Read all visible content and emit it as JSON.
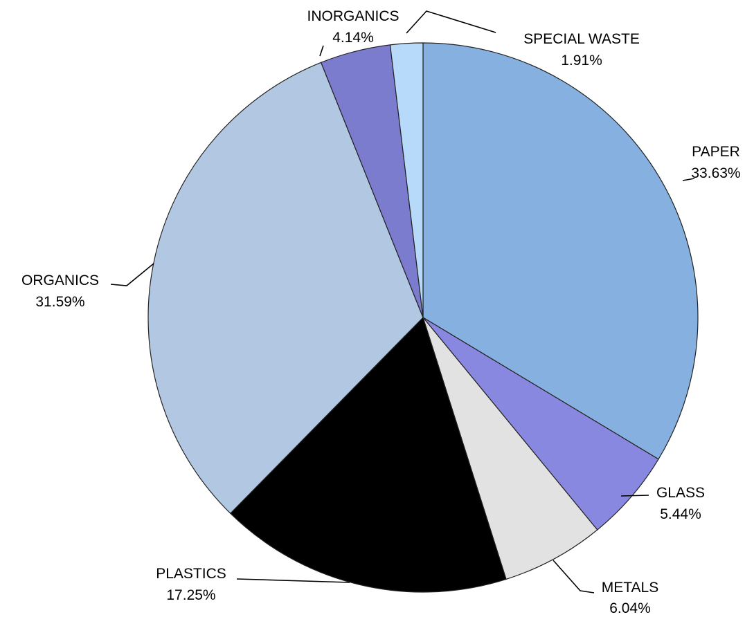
{
  "chart_data": {
    "type": "pie",
    "title": "",
    "slices": [
      {
        "label": "PAPER",
        "value": 33.63,
        "value_label": "33.63%",
        "color": "#86B0E0"
      },
      {
        "label": "GLASS",
        "value": 5.44,
        "value_label": "5.44%",
        "color": "#8888E0"
      },
      {
        "label": "METALS",
        "value": 6.04,
        "value_label": "6.04%",
        "color": "#E2E2E2"
      },
      {
        "label": "PLASTICS",
        "value": 17.25,
        "value_label": "17.25%",
        "color": "#000000"
      },
      {
        "label": "ORGANICS",
        "value": 31.59,
        "value_label": "31.59%",
        "color": "#B2C8E2"
      },
      {
        "label": "INORGANICS",
        "value": 4.14,
        "value_label": "4.14%",
        "color": "#7C7CCE"
      },
      {
        "label": "SPECIAL WASTE",
        "value": 1.91,
        "value_label": "1.91%",
        "color": "#B8DAFA"
      }
    ],
    "start": "12 o'clock",
    "direction": "clockwise",
    "legend": "none",
    "labels": "outside with leader lines"
  }
}
